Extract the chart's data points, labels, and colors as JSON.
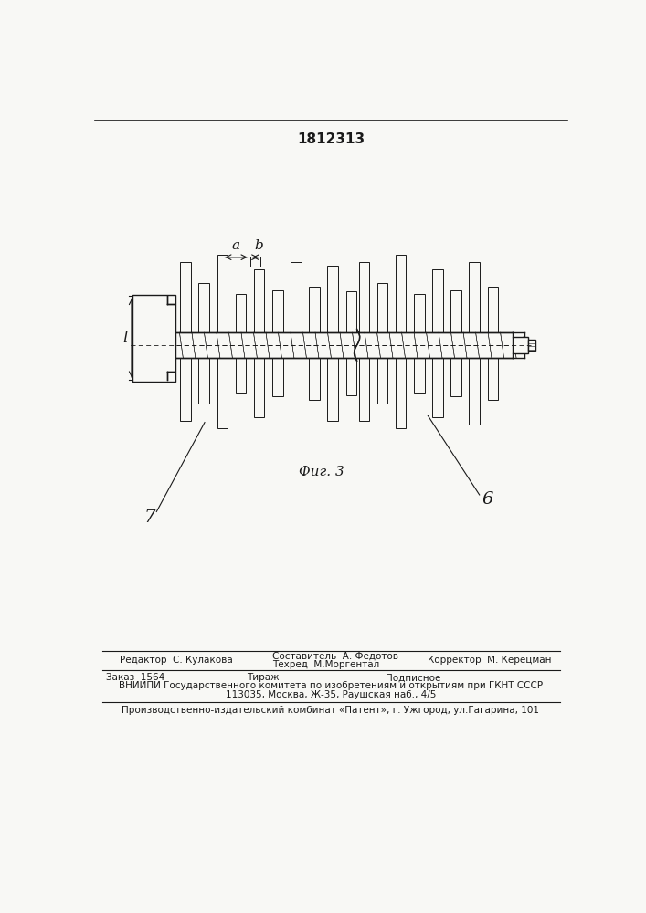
{
  "title": "1812313",
  "title_fontsize": 11,
  "fig_width": 7.07,
  "fig_height": 10.0,
  "bg_color": "#f8f8f5",
  "drawing_color": "#1a1a1a",
  "fig_caption": "Фиг. 3",
  "label_7": "7",
  "label_6": "6",
  "label_a": "a",
  "label_b": "b",
  "label_l": "l",
  "footer_line1_left": "Редактор  С. Кулакова",
  "footer_line1_center": "Составитель  А. Федотов",
  "footer_line1_right": "Корректор  М. Керецман",
  "footer_line2_center": "Техред  М.Моргентал",
  "footer_line3_left": "Заказ  1564",
  "footer_line3_center": "Тираж",
  "footer_line3_right": "Подписное",
  "footer_line4": "ВНИИПИ Государственного комитета по изобретениям и открытиям при ГКНТ СССР",
  "footer_line5": "113035, Москва, Ж-35, Раушская наб., 4/5",
  "footer_line6": "Производственно-издательский комбинат «Патент», г. Ужгород, ул.Гагарина, 101"
}
